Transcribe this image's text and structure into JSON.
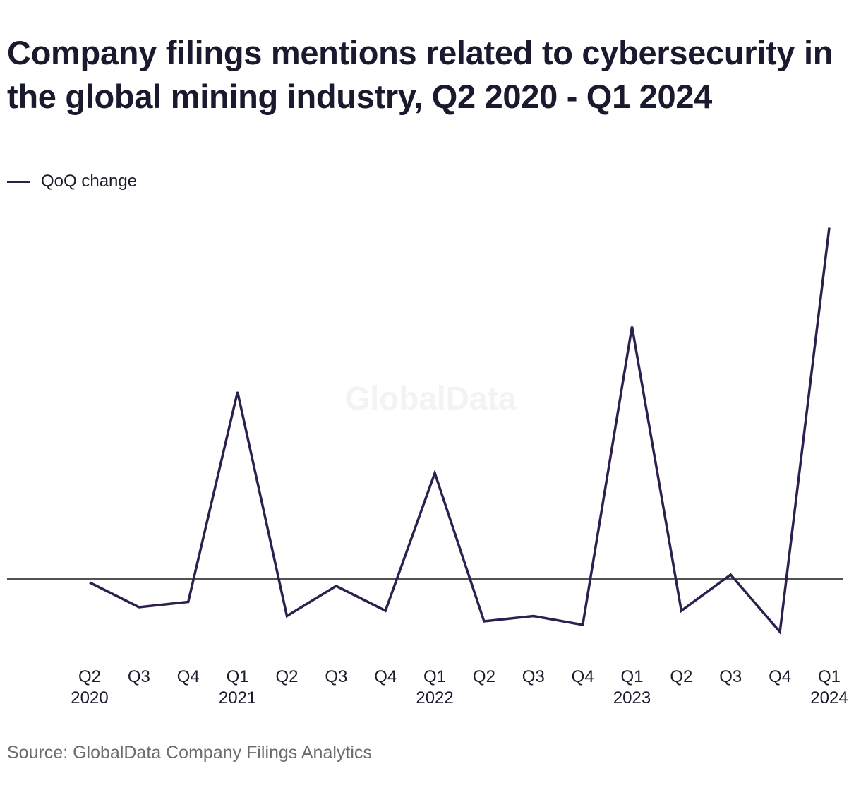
{
  "title": "Company filings mentions related to cybersecurity in the global mining industry, Q2 2020 - Q1 2024",
  "watermark": "GlobalData",
  "source": "Source: GlobalData Company Filings Analytics",
  "colors": {
    "line": "#2e1f4f",
    "zero_line": "#1a1a1a",
    "text": "#1c1b2e",
    "watermark": "#f3f3f3"
  },
  "chart_data": {
    "type": "line",
    "title": "Company filings mentions related to cybersecurity in the global mining industry, Q2 2020 - Q1 2024",
    "categories": [
      {
        "quarter": "Q2",
        "year": "2020"
      },
      {
        "quarter": "Q3",
        "year": ""
      },
      {
        "quarter": "Q4",
        "year": ""
      },
      {
        "quarter": "Q1",
        "year": "2021"
      },
      {
        "quarter": "Q2",
        "year": ""
      },
      {
        "quarter": "Q3",
        "year": ""
      },
      {
        "quarter": "Q4",
        "year": ""
      },
      {
        "quarter": "Q1",
        "year": "2022"
      },
      {
        "quarter": "Q2",
        "year": ""
      },
      {
        "quarter": "Q3",
        "year": ""
      },
      {
        "quarter": "Q4",
        "year": ""
      },
      {
        "quarter": "Q1",
        "year": "2023"
      },
      {
        "quarter": "Q2",
        "year": ""
      },
      {
        "quarter": "Q3",
        "year": ""
      },
      {
        "quarter": "Q4",
        "year": ""
      },
      {
        "quarter": "Q1",
        "year": "2024"
      }
    ],
    "series": [
      {
        "name": "QoQ change",
        "values": [
          -0.1,
          -0.8,
          -0.65,
          5.3,
          -1.05,
          -0.2,
          -0.9,
          3.0,
          -1.2,
          -1.05,
          -1.3,
          7.15,
          -0.9,
          0.12,
          -1.5,
          9.95
        ]
      }
    ],
    "ylim": [
      -2.1,
      10.4
    ],
    "zero_line": true,
    "grid": false,
    "legend_position": "top-left"
  }
}
